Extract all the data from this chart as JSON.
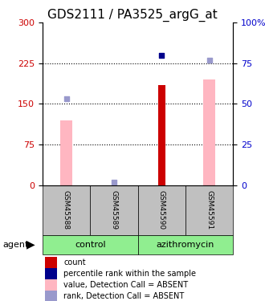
{
  "title": "GDS2111 / PA3525_argG_at",
  "samples": [
    "GSM45588",
    "GSM45589",
    "GSM45590",
    "GSM45591"
  ],
  "groups": [
    {
      "label": "control",
      "indices": [
        0,
        1
      ],
      "color": "#90EE90"
    },
    {
      "label": "azithromycin",
      "indices": [
        2,
        3
      ],
      "color": "#90EE90"
    }
  ],
  "left_yaxis": {
    "min": 0,
    "max": 300,
    "ticks": [
      0,
      75,
      150,
      225,
      300
    ],
    "color": "#CC0000"
  },
  "right_yaxis": {
    "min": 0,
    "max": 100,
    "ticks": [
      0,
      25,
      50,
      75,
      100
    ],
    "labels": [
      "0",
      "25",
      "50",
      "75",
      "100%"
    ],
    "color": "#0000CC"
  },
  "dotted_lines": [
    75,
    150,
    225
  ],
  "pink_bars": [
    120,
    null,
    null,
    195
  ],
  "red_bars": [
    null,
    null,
    185,
    null
  ],
  "blue_dot_ranks": [
    53,
    2,
    80,
    77
  ],
  "blue_dot_colors": [
    "#9999CC",
    "#9999CC",
    "#00008B",
    "#9999CC"
  ],
  "pink_bar_color": "#FFB6C1",
  "red_bar_color": "#CC0000",
  "bar_width": 0.25,
  "red_bar_width": 0.15,
  "legend_items": [
    {
      "color": "#CC0000",
      "label": "count"
    },
    {
      "color": "#00008B",
      "label": "percentile rank within the sample"
    },
    {
      "color": "#FFB6C1",
      "label": "value, Detection Call = ABSENT"
    },
    {
      "color": "#9999CC",
      "label": "rank, Detection Call = ABSENT"
    }
  ],
  "sample_box_color": "#C0C0C0",
  "title_fontsize": 11
}
